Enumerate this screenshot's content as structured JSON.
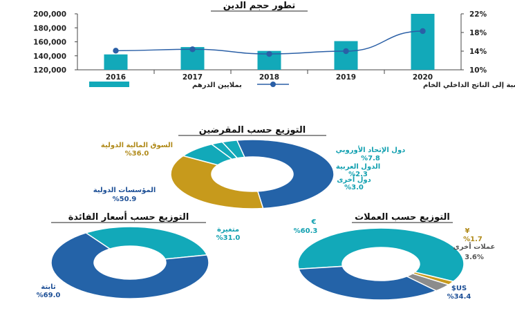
{
  "colors": {
    "teal": "#12a9b9",
    "navy": "#2463a8",
    "gold": "#c79a1c",
    "gray": "#8c8c8c",
    "line": "#2a5fa6",
    "text_teal": "#12a0b0",
    "text_navy": "#1d4f96",
    "text_gold": "#b08a1a"
  },
  "chart_data": [
    {
      "type": "bar",
      "title": "تطور حجم الدين",
      "categories": [
        "2016",
        "2017",
        "2018",
        "2019",
        "2020"
      ],
      "ylim": [
        120000,
        200000
      ],
      "y_ticks": [
        "200,000",
        "180,000",
        "160,000",
        "140,000",
        "120,000"
      ],
      "y2lim": [
        10,
        22
      ],
      "y2_ticks": [
        "22%",
        "18%",
        "14%",
        "10%"
      ],
      "series": [
        {
          "name": "بملايين الدرهم",
          "type": "bar",
          "values": [
            142000,
            152500,
            147000,
            161000,
            200000
          ]
        },
        {
          "name": "بالنسبة إلى الناتج الداخلي الخام",
          "type": "line",
          "axis": "right",
          "values": [
            14.1,
            14.4,
            13.4,
            14.0,
            18.3
          ]
        }
      ]
    },
    {
      "type": "pie",
      "title": "التوزيع حسب المقرضين",
      "slices": [
        {
          "name": "دول الإتحاد الأوروبي",
          "value": 7.8,
          "label": "%7.8",
          "color": "teal"
        },
        {
          "name": "الدول العربية",
          "value": 2.3,
          "label": "%2.3",
          "color": "teal"
        },
        {
          "name": "دول أخرى",
          "value": 3.0,
          "label": "%3.0",
          "color": "teal"
        },
        {
          "name": "المؤسسات الدولية",
          "value": 50.9,
          "label": "%50.9",
          "color": "navy"
        },
        {
          "name": "السوق المالية الدولية",
          "value": 36.0,
          "label": "%36.0",
          "color": "gold"
        }
      ]
    },
    {
      "type": "pie",
      "title": "التوزيع حسب أسعار الفائدة",
      "slices": [
        {
          "name": "متغيرة",
          "value": 31.0,
          "label": "%31.0",
          "color": "teal"
        },
        {
          "name": "ثابتة",
          "value": 69.0,
          "label": "%69.0",
          "color": "navy"
        }
      ]
    },
    {
      "type": "pie",
      "title": "التوزيع حسب العملات",
      "slices": [
        {
          "name": "€",
          "value": 60.3,
          "label": "%60.3",
          "color": "teal"
        },
        {
          "name": "¥",
          "value": 1.7,
          "label": "%1.7",
          "color": "gold"
        },
        {
          "name": "عملات أخرى",
          "value": 3.6,
          "label": "3.6%",
          "color": "gray"
        },
        {
          "name": "$US",
          "value": 34.4,
          "label": "%34.4",
          "color": "navy"
        }
      ]
    }
  ]
}
